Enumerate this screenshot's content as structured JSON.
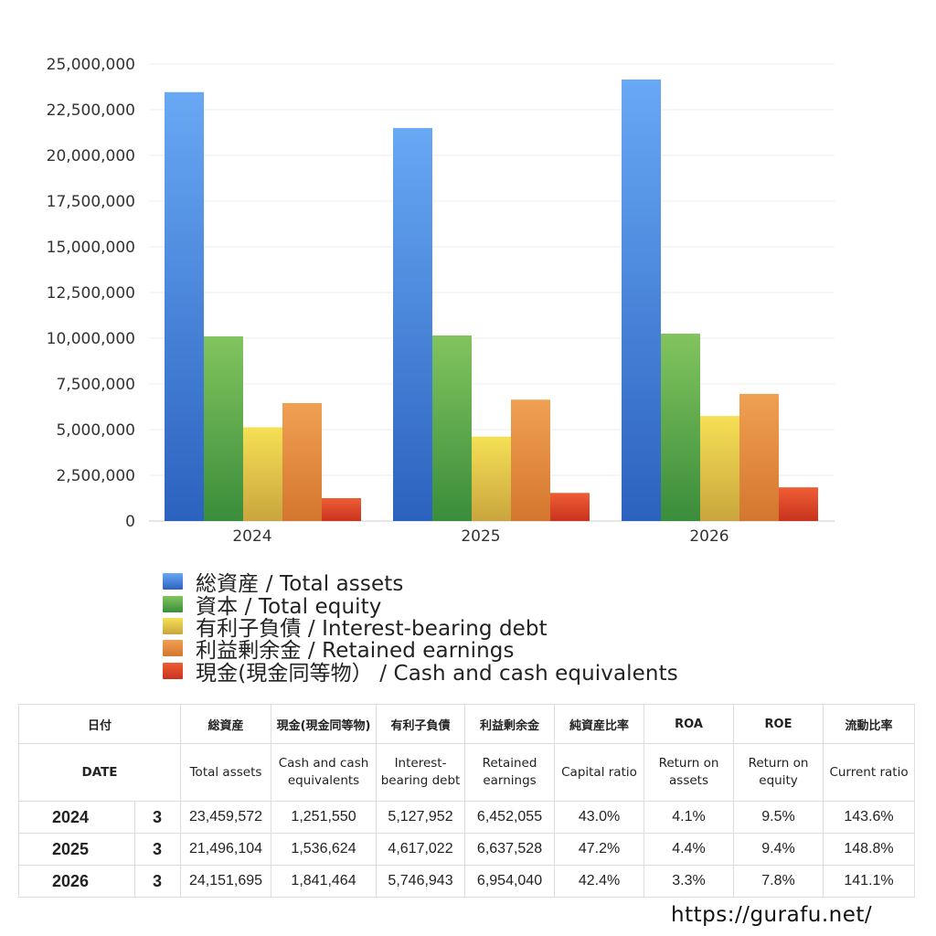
{
  "chart_data": {
    "type": "bar",
    "categories": [
      "2024",
      "2025",
      "2026"
    ],
    "series": [
      {
        "name": "総資産 / Total assets",
        "values": [
          23459572,
          21496104,
          24151695
        ]
      },
      {
        "name": "資本 / Total equity",
        "values": [
          10100000,
          10150000,
          10250000
        ]
      },
      {
        "name": "有利子負債 / Interest-bearing debt",
        "values": [
          5127952,
          4617022,
          5746943
        ]
      },
      {
        "name": "利益剰余金 / Retained earnings",
        "values": [
          6452055,
          6637528,
          6954040
        ]
      },
      {
        "name": "現金(現金同等物）  /  Cash and cash equivalents",
        "values": [
          1251550,
          1536624,
          1841464
        ]
      }
    ],
    "ylim": [
      0,
      25000000
    ],
    "yticks": [
      "0",
      "2,500,000",
      "5,000,000",
      "7,500,000",
      "10,000,000",
      "12,500,000",
      "15,000,000",
      "17,500,000",
      "20,000,000",
      "22,500,000",
      "25,000,000"
    ],
    "grid": true,
    "legend_position": "bottom-left",
    "colors": [
      [
        "#68a8f4",
        "#2c62bf"
      ],
      [
        "#82c45e",
        "#3a8d3b"
      ],
      [
        "#f5e055",
        "#c9a53e"
      ],
      [
        "#f0a052",
        "#d4762f"
      ],
      [
        "#ee5e35",
        "#c9331e"
      ]
    ]
  },
  "table": {
    "header_jp": [
      "日付",
      "総資産",
      "現金(現金同等物)",
      "有利子負債",
      "利益剰余金",
      "純資産比率",
      "ROA",
      "ROE",
      "流動比率"
    ],
    "header_en": [
      "DATE",
      "Total assets",
      "Cash and cash equivalents",
      "Interest-bearing debt",
      "Retained earnings",
      "Capital ratio",
      "Return on assets",
      "Return on equity",
      "Current ratio"
    ],
    "rows": [
      {
        "year": "2024",
        "month": "3",
        "total_assets": "23,459,572",
        "cash": "1,251,550",
        "debt": "5,127,952",
        "retained": "6,452,055",
        "capital_ratio": "43.0%",
        "roa": "4.1%",
        "roe": "9.5%",
        "current_ratio": "143.6%"
      },
      {
        "year": "2025",
        "month": "3",
        "total_assets": "21,496,104",
        "cash": "1,536,624",
        "debt": "4,617,022",
        "retained": "6,637,528",
        "capital_ratio": "47.2%",
        "roa": "4.4%",
        "roe": "9.4%",
        "current_ratio": "148.8%"
      },
      {
        "year": "2026",
        "month": "3",
        "total_assets": "24,151,695",
        "cash": "1,841,464",
        "debt": "5,746,943",
        "retained": "6,954,040",
        "capital_ratio": "42.4%",
        "roa": "3.3%",
        "roe": "7.8%",
        "current_ratio": "141.1%"
      }
    ]
  },
  "footer": {
    "site": "https://gurafu.net/"
  }
}
